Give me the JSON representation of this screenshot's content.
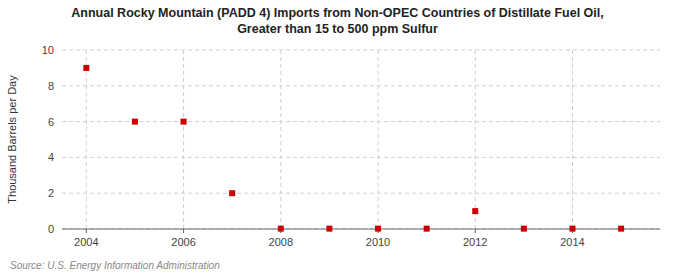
{
  "chart_data": {
    "type": "scatter",
    "title": "Annual Rocky Mountain (PADD 4) Imports from Non-OPEC Countries of Distillate Fuel Oil,",
    "subtitle": "Greater than 15 to 500 ppm Sulfur",
    "y_label": "Thousand Barrels per Day",
    "source": "Source: U.S. Energy Information Administration",
    "x": [
      2004,
      2005,
      2006,
      2007,
      2008,
      2009,
      2010,
      2011,
      2012,
      2013,
      2014,
      2015
    ],
    "values": [
      9.0,
      6.0,
      6.0,
      2.0,
      0.02,
      0.02,
      0.02,
      0.02,
      1.0,
      0.02,
      0.02,
      0.02
    ],
    "color": "#cc0000",
    "marker": "square",
    "xlim": [
      2003.5,
      2015.8
    ],
    "ylim": [
      0,
      10
    ],
    "xticks": [
      2004,
      2006,
      2008,
      2010,
      2012,
      2014
    ],
    "yticks": [
      0,
      2,
      4,
      6,
      8,
      10
    ],
    "grid": true
  }
}
